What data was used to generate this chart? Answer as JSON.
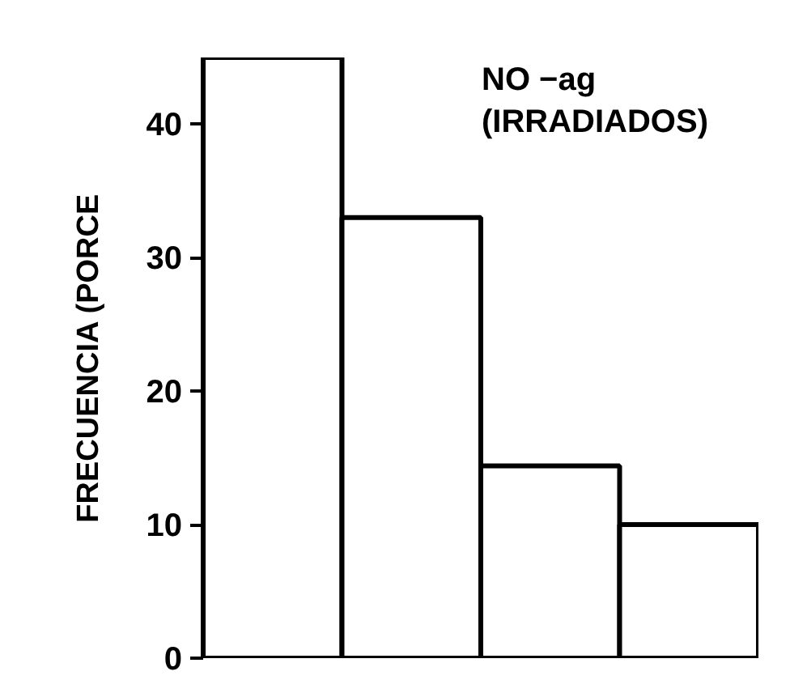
{
  "chart_data": {
    "type": "bar",
    "ylabel": "FRECUENCIA (PORCE",
    "categories": [
      null,
      null,
      null,
      null
    ],
    "values": [
      45,
      33,
      14.4,
      10
    ],
    "color": "#ffffff",
    "ylim": [
      0,
      45
    ],
    "yticks": [
      0,
      10,
      20,
      30,
      40
    ],
    "grid": false,
    "annotations": [
      "NO −ag",
      "(IRRADIADOS)"
    ]
  }
}
